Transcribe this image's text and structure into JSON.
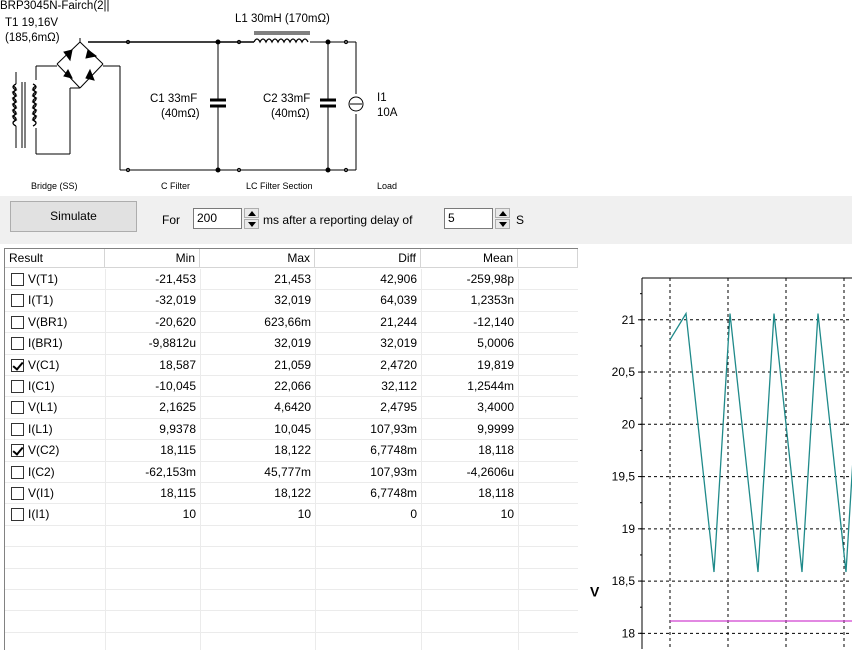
{
  "schematic": {
    "bridge_label": "BRP3045N-Fairch(2||",
    "transformer_label": "T1 19,16V",
    "transformer_resistance": "(185,6mΩ)",
    "inductor_label": "L1 30mH (170mΩ)",
    "c1_label": "C1 33mF",
    "c1_esr": "(40mΩ)",
    "c2_label": "C2 33mF",
    "c2_esr": "(40mΩ)",
    "i1_label": "I1",
    "i1_value": "10A",
    "sections": {
      "bridge": "Bridge (SS)",
      "cfilter": "C Filter",
      "lc": "LC Filter Section",
      "load": "Load"
    }
  },
  "controls": {
    "simulate_label": "Simulate",
    "for_label": "For",
    "duration_value": "200",
    "ms_label": "ms  after a reporting delay of",
    "delay_value": "5",
    "s_label": "S"
  },
  "results": {
    "headers": [
      "Result",
      "Min",
      "Max",
      "Diff",
      "Mean"
    ],
    "rows": [
      {
        "name": "V(T1)",
        "checked": false,
        "min": "-21,453",
        "max": "21,453",
        "diff": "42,906",
        "mean": "-259,98p"
      },
      {
        "name": "I(T1)",
        "checked": false,
        "min": "-32,019",
        "max": "32,019",
        "diff": "64,039",
        "mean": "1,2353n"
      },
      {
        "name": "V(BR1)",
        "checked": false,
        "min": "-20,620",
        "max": "623,66m",
        "diff": "21,244",
        "mean": "-12,140"
      },
      {
        "name": "I(BR1)",
        "checked": false,
        "min": "-9,8812u",
        "max": "32,019",
        "diff": "32,019",
        "mean": "5,0006"
      },
      {
        "name": "V(C1)",
        "checked": true,
        "min": "18,587",
        "max": "21,059",
        "diff": "2,4720",
        "mean": "19,819"
      },
      {
        "name": "I(C1)",
        "checked": false,
        "min": "-10,045",
        "max": "22,066",
        "diff": "32,112",
        "mean": "1,2544m"
      },
      {
        "name": "V(L1)",
        "checked": false,
        "min": "2,1625",
        "max": "4,6420",
        "diff": "2,4795",
        "mean": "3,4000"
      },
      {
        "name": "I(L1)",
        "checked": false,
        "min": "9,9378",
        "max": "10,045",
        "diff": "107,93m",
        "mean": "9,9999"
      },
      {
        "name": "V(C2)",
        "checked": true,
        "min": "18,115",
        "max": "18,122",
        "diff": "6,7748m",
        "mean": "18,118"
      },
      {
        "name": "I(C2)",
        "checked": false,
        "min": "-62,153m",
        "max": "45,777m",
        "diff": "107,93m",
        "mean": "-4,2606u"
      },
      {
        "name": "V(I1)",
        "checked": false,
        "min": "18,115",
        "max": "18,122",
        "diff": "6,7748m",
        "mean": "18,118"
      },
      {
        "name": "I(I1)",
        "checked": false,
        "min": "10",
        "max": "10",
        "diff": "0",
        "mean": "10"
      }
    ]
  },
  "chart_data": {
    "type": "line",
    "ylabel": "V",
    "ylim": [
      17.85,
      21.4
    ],
    "y_ticks": [
      "21",
      "20,5",
      "20",
      "19,5",
      "19",
      "18,5",
      "18"
    ],
    "y_tick_values": [
      21,
      20.5,
      20,
      19.5,
      19,
      18.5,
      18
    ],
    "grid": true,
    "series": [
      {
        "color": "#1f8a8a",
        "min": 18.587,
        "max": 21.059,
        "cycles": 4.7
      },
      {
        "color": "#d040d0",
        "value": 18.118
      }
    ]
  }
}
